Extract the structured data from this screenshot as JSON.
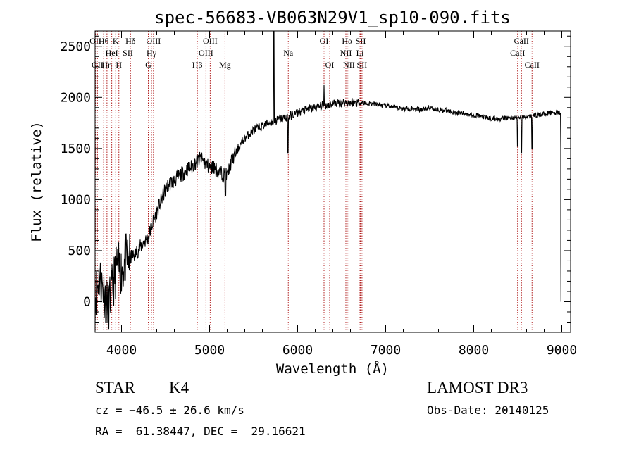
{
  "chart_data": {
    "type": "line",
    "title": "spec-56683-VB063N29V1_sp10-090.fits",
    "xlabel": "Wavelength (Å)",
    "ylabel": "Flux (relative)",
    "xlim": [
      3700,
      9100
    ],
    "ylim": [
      -300,
      2650
    ],
    "xticks": [
      4000,
      5000,
      6000,
      7000,
      8000,
      9000
    ],
    "yticks": [
      0,
      500,
      1000,
      1500,
      2000,
      2500
    ],
    "grid": false,
    "series": [
      {
        "color": "#000000",
        "points": [
          [
            3700,
            50
          ],
          [
            3750,
            250
          ],
          [
            3800,
            100
          ],
          [
            3850,
            -50
          ],
          [
            3900,
            150
          ],
          [
            3950,
            350
          ],
          [
            4000,
            300
          ],
          [
            4050,
            420
          ],
          [
            4100,
            430
          ],
          [
            4150,
            460
          ],
          [
            4200,
            520
          ],
          [
            4250,
            580
          ],
          [
            4300,
            620
          ],
          [
            4350,
            760
          ],
          [
            4400,
            880
          ],
          [
            4450,
            990
          ],
          [
            4500,
            1100
          ],
          [
            4550,
            1160
          ],
          [
            4600,
            1180
          ],
          [
            4650,
            1230
          ],
          [
            4700,
            1260
          ],
          [
            4750,
            1300
          ],
          [
            4800,
            1320
          ],
          [
            4850,
            1370
          ],
          [
            4900,
            1400
          ],
          [
            4950,
            1360
          ],
          [
            5000,
            1310
          ],
          [
            5050,
            1320
          ],
          [
            5100,
            1270
          ],
          [
            5150,
            1250
          ],
          [
            5200,
            1230
          ],
          [
            5250,
            1380
          ],
          [
            5300,
            1460
          ],
          [
            5350,
            1540
          ],
          [
            5400,
            1600
          ],
          [
            5450,
            1640
          ],
          [
            5500,
            1680
          ],
          [
            5550,
            1700
          ],
          [
            5600,
            1720
          ],
          [
            5650,
            1740
          ],
          [
            5700,
            1760
          ],
          [
            5750,
            1770
          ],
          [
            5800,
            1790
          ],
          [
            5850,
            1800
          ],
          [
            5900,
            1810
          ],
          [
            5950,
            1830
          ],
          [
            6000,
            1850
          ],
          [
            6100,
            1880
          ],
          [
            6200,
            1900
          ],
          [
            6300,
            1920
          ],
          [
            6400,
            1940
          ],
          [
            6500,
            1950
          ],
          [
            6600,
            1950
          ],
          [
            6700,
            1950
          ],
          [
            6800,
            1940
          ],
          [
            6900,
            1930
          ],
          [
            7000,
            1920
          ],
          [
            7100,
            1900
          ],
          [
            7200,
            1890
          ],
          [
            7300,
            1890
          ],
          [
            7400,
            1880
          ],
          [
            7500,
            1900
          ],
          [
            7600,
            1880
          ],
          [
            7700,
            1870
          ],
          [
            7800,
            1850
          ],
          [
            7900,
            1840
          ],
          [
            8000,
            1830
          ],
          [
            8100,
            1810
          ],
          [
            8200,
            1790
          ],
          [
            8300,
            1790
          ],
          [
            8400,
            1800
          ],
          [
            8500,
            1800
          ],
          [
            8600,
            1810
          ],
          [
            8700,
            1820
          ],
          [
            8800,
            1840
          ],
          [
            8900,
            1850
          ],
          [
            8980,
            1850
          ]
        ]
      }
    ],
    "absorption_lines": [
      {
        "x": 5890,
        "y": 1460
      },
      {
        "x": 8498,
        "y": 1520
      },
      {
        "x": 8542,
        "y": 1460
      },
      {
        "x": 8662,
        "y": 1500
      },
      {
        "x": 5180,
        "y": 1040
      }
    ],
    "emission_lines": [
      {
        "x": 5730,
        "y": 2650
      },
      {
        "x": 6300,
        "y": 2120
      }
    ],
    "line_markers": [
      {
        "x": 3705,
        "rows": [
          "OII"
        ]
      },
      {
        "x": 3727,
        "rows": [
          "",
          "",
          "OII"
        ]
      },
      {
        "x": 3797,
        "rows": [
          "Hθ",
          "",
          ""
        ]
      },
      {
        "x": 3835,
        "rows": [
          "",
          "",
          "Hη"
        ]
      },
      {
        "x": 3889,
        "rows": [
          "",
          "HeI",
          ""
        ]
      },
      {
        "x": 3934,
        "rows": [
          "K",
          "",
          ""
        ]
      },
      {
        "x": 3970,
        "rows": [
          "",
          "",
          "H"
        ]
      },
      {
        "x": 4072,
        "rows": [
          "",
          "SII",
          ""
        ]
      },
      {
        "x": 4102,
        "rows": [
          "Hδ",
          "",
          ""
        ]
      },
      {
        "x": 4304,
        "rows": [
          "",
          "",
          "G"
        ]
      },
      {
        "x": 4340,
        "rows": [
          "",
          "Hγ",
          ""
        ]
      },
      {
        "x": 4363,
        "rows": [
          "OIII",
          "",
          ""
        ]
      },
      {
        "x": 4861,
        "rows": [
          "",
          "",
          "Hβ"
        ]
      },
      {
        "x": 4959,
        "rows": [
          "",
          "OIII",
          ""
        ]
      },
      {
        "x": 5007,
        "rows": [
          "OIII",
          "",
          ""
        ]
      },
      {
        "x": 5175,
        "rows": [
          "",
          "",
          "Mg"
        ]
      },
      {
        "x": 5894,
        "rows": [
          "",
          "Na",
          ""
        ]
      },
      {
        "x": 6300,
        "rows": [
          "OI",
          "",
          ""
        ]
      },
      {
        "x": 6364,
        "rows": [
          "",
          "",
          "OI"
        ]
      },
      {
        "x": 6548,
        "rows": [
          "",
          "NII",
          ""
        ]
      },
      {
        "x": 6563,
        "rows": [
          "Hα",
          "",
          ""
        ]
      },
      {
        "x": 6583,
        "rows": [
          "",
          "",
          "NII"
        ]
      },
      {
        "x": 6708,
        "rows": [
          "",
          "Li",
          ""
        ]
      },
      {
        "x": 6716,
        "rows": [
          "SII",
          "",
          ""
        ]
      },
      {
        "x": 6731,
        "rows": [
          "",
          "",
          "SII"
        ]
      },
      {
        "x": 8498,
        "rows": [
          "",
          "CaII",
          ""
        ]
      },
      {
        "x": 8542,
        "rows": [
          "CaII",
          "",
          ""
        ]
      },
      {
        "x": 8662,
        "rows": [
          "",
          "",
          "CaII"
        ]
      }
    ]
  },
  "info": {
    "class": "STAR",
    "subclass": "K4",
    "survey": "LAMOST DR3",
    "cz": "cz = −46.5 ± 26.6 km/s",
    "obs_date": "Obs-Date: 20140125",
    "coords": "RA =  61.38447, DEC =  29.16621"
  }
}
